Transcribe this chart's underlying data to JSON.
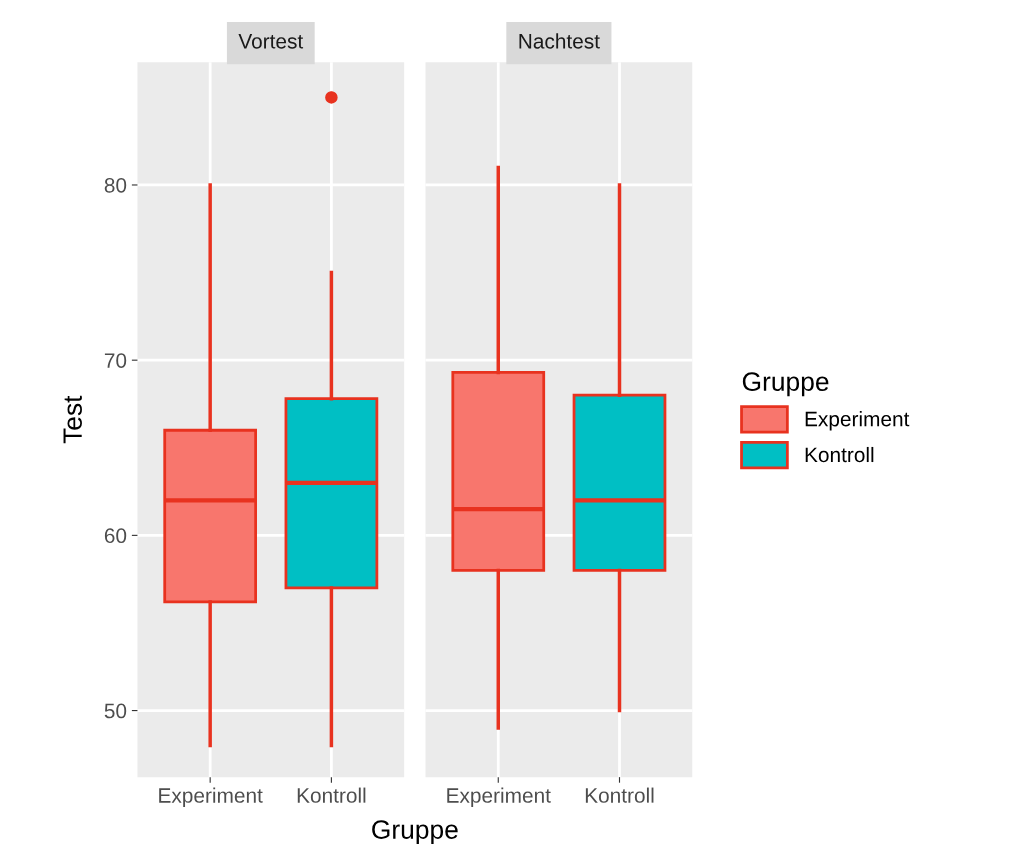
{
  "chart_data": [
    {
      "type": "box",
      "title": "Vortest",
      "ylabel": "Test",
      "xlabel": "Gruppe",
      "categories": [
        "Experiment",
        "Kontroll"
      ],
      "ylim": [
        46.2,
        87
      ],
      "yticks": [
        50,
        60,
        70,
        80
      ],
      "grid": true,
      "legend": "right",
      "legend_title": "Gruppe",
      "series": [
        {
          "name": "Experiment",
          "color": "#f8766d",
          "boxes": [
            {
              "low": 48,
              "q1": 56.2,
              "median": 62,
              "q3": 66,
              "high": 80
            },
            null
          ]
        },
        {
          "name": "Kontroll",
          "color": "#00bfc4",
          "boxes": [
            null,
            {
              "low": 48,
              "q1": 57,
              "median": 63,
              "q3": 67.8,
              "high": 75,
              "outliers": [
                85
              ]
            }
          ]
        }
      ]
    },
    {
      "type": "box",
      "title": "Nachtest",
      "categories": [
        "Experiment",
        "Kontroll"
      ],
      "ylim": [
        46.2,
        87
      ],
      "yticks": [
        50,
        60,
        70,
        80
      ],
      "tick_labels": "x",
      "grid": true,
      "series": [
        {
          "color": "#f8766d",
          "boxes": [
            {
              "low": 49,
              "q1": 58,
              "median": 61.5,
              "q3": 69.3,
              "high": 81
            },
            null
          ]
        },
        {
          "color": "#00bfc4",
          "boxes": [
            null,
            {
              "low": 50,
              "q1": 58,
              "median": 62,
              "q3": 68,
              "high": 80
            }
          ]
        }
      ]
    }
  ]
}
